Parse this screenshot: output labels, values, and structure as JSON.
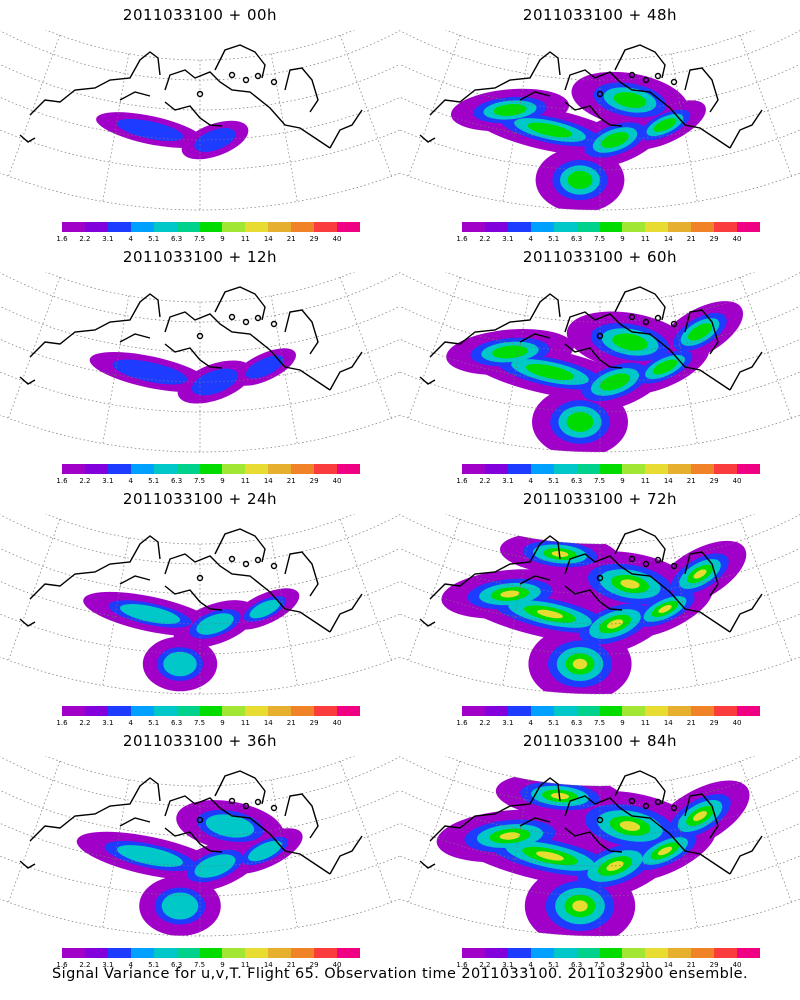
{
  "panels": [
    {
      "title": "2011033100 + 00h",
      "level": 0
    },
    {
      "title": "2011033100 + 48h",
      "level": 4
    },
    {
      "title": "2011033100 + 12h",
      "level": 1
    },
    {
      "title": "2011033100 + 60h",
      "level": 5
    },
    {
      "title": "2011033100 + 24h",
      "level": 2
    },
    {
      "title": "2011033100 + 72h",
      "level": 6
    },
    {
      "title": "2011033100 + 36h",
      "level": 3
    },
    {
      "title": "2011033100 + 84h",
      "level": 7
    }
  ],
  "colorbar": {
    "labels": [
      "1.6",
      "2.2",
      "3.1",
      "4",
      "5.1",
      "6.3",
      "7.5",
      "9",
      "11",
      "14",
      "21",
      "29",
      "40"
    ],
    "colors": [
      "#a000c8",
      "#8200dc",
      "#1e3cff",
      "#00a0ff",
      "#00c8c8",
      "#00d28c",
      "#00dc00",
      "#a0e632",
      "#e6dc32",
      "#e6af2d",
      "#f08228",
      "#fa3c3c",
      "#f00082"
    ]
  },
  "footer": "Signal Variance for u,v,T. Flight 65. Observation time 2011033100. 2011032900 ensemble."
}
